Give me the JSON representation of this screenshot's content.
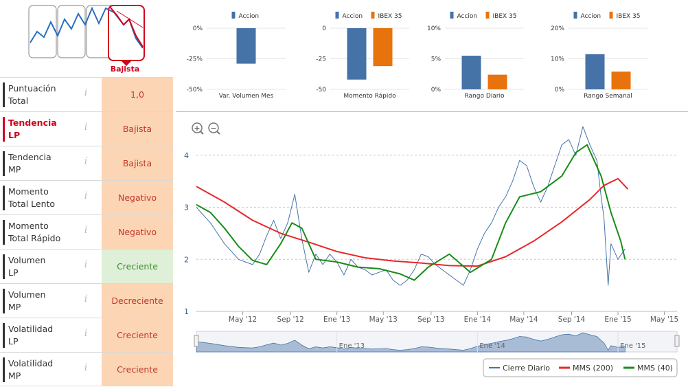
{
  "trend_widget": {
    "label": "Bajista",
    "selected_index": 3
  },
  "metrics": [
    {
      "label_line1": "Puntuación",
      "label_line2": "Total",
      "value": "1,0",
      "status": "negative",
      "highlight": false
    },
    {
      "label_line1": "Tendencia",
      "label_line2": "LP",
      "value": "Bajista",
      "status": "negative",
      "highlight": true
    },
    {
      "label_line1": "Tendencia",
      "label_line2": "MP",
      "value": "Bajista",
      "status": "negative",
      "highlight": false
    },
    {
      "label_line1": "Momento",
      "label_line2": "Total Lento",
      "value": "Negativo",
      "status": "negative",
      "highlight": false
    },
    {
      "label_line1": "Momento",
      "label_line2": "Total Rápido",
      "value": "Negativo",
      "status": "negative",
      "highlight": false
    },
    {
      "label_line1": "Volumen",
      "label_line2": "LP",
      "value": "Creciente",
      "status": "positive",
      "highlight": false
    },
    {
      "label_line1": "Volumen",
      "label_line2": "MP",
      "value": "Decreciente",
      "status": "negative",
      "highlight": false
    },
    {
      "label_line1": "Volatilidad",
      "label_line2": "LP",
      "value": "Creciente",
      "status": "negative",
      "highlight": false
    },
    {
      "label_line1": "Volatilidad",
      "label_line2": "MP",
      "value": "Creciente",
      "status": "negative",
      "highlight": false
    }
  ],
  "info_glyph": "i",
  "colors": {
    "accion": "#4572a7",
    "ibex": "#e8730c",
    "cierre": "#4572a7",
    "mms200": "#e8262a",
    "mms40": "#168d16",
    "negative_bg": "#fcd5b4",
    "positive_bg": "#dff0d8",
    "highlight": "#d0021b"
  },
  "chart_data": [
    {
      "type": "bar",
      "title": "Var. Volumen Mes",
      "series": [
        {
          "name": "Accion",
          "values": [
            -29
          ]
        }
      ],
      "categories": [
        "Var. Volumen Mes"
      ],
      "ylim": [
        -50,
        0
      ],
      "yticks": [
        0,
        -25,
        -50
      ],
      "tick_labels": [
        "0%",
        "-25%",
        "-50%"
      ]
    },
    {
      "type": "bar",
      "title": "Momento Rápido",
      "series": [
        {
          "name": "Accion",
          "values": [
            -42
          ]
        },
        {
          "name": "IBEX 35",
          "values": [
            -31
          ]
        }
      ],
      "categories": [
        "Momento Rápido"
      ],
      "ylim": [
        -50,
        0
      ],
      "yticks": [
        0,
        -25,
        -50
      ],
      "tick_labels": [
        "0",
        "-25",
        "-50"
      ]
    },
    {
      "type": "bar",
      "title": "Rango Diario",
      "series": [
        {
          "name": "Accion",
          "values": [
            5.5
          ]
        },
        {
          "name": "IBEX 35",
          "values": [
            2.4
          ]
        }
      ],
      "categories": [
        "Rango Diario"
      ],
      "ylim": [
        0,
        10
      ],
      "yticks": [
        10,
        5,
        0
      ],
      "tick_labels": [
        "10%",
        "5%",
        "0%"
      ]
    },
    {
      "type": "bar",
      "title": "Rango Semanal",
      "series": [
        {
          "name": "Accion",
          "values": [
            11.5
          ]
        },
        {
          "name": "IBEX 35",
          "values": [
            5.8
          ]
        }
      ],
      "categories": [
        "Rango Semanal"
      ],
      "ylim": [
        0,
        20
      ],
      "yticks": [
        20,
        10,
        0
      ],
      "tick_labels": [
        "20%",
        "10%",
        "0%"
      ]
    },
    {
      "type": "line",
      "title": "",
      "ylim": [
        1,
        4.5
      ],
      "yticks": [
        1,
        2,
        3,
        4
      ],
      "tick_labels": [
        "1",
        "2",
        "3",
        "4"
      ],
      "xlim": [
        2012.0,
        2015.42
      ],
      "x_ticks": [
        2012.33,
        2012.67,
        2013.0,
        2013.33,
        2013.67,
        2014.0,
        2014.33,
        2014.67,
        2015.0,
        2015.33
      ],
      "x_tick_labels": [
        "May '12",
        "Sep '12",
        "Ene '13",
        "May '13",
        "Sep '13",
        "Ene '14",
        "May '14",
        "Sep '14",
        "Ene '15",
        "May '15"
      ],
      "navigator_labels": [
        "Ene '13",
        "Ene '14",
        "Ene '15"
      ],
      "series": [
        {
          "name": "Cierre Diario",
          "x": [
            2012.0,
            2012.05,
            2012.1,
            2012.15,
            2012.2,
            2012.25,
            2012.3,
            2012.35,
            2012.4,
            2012.45,
            2012.5,
            2012.55,
            2012.6,
            2012.65,
            2012.7,
            2012.75,
            2012.8,
            2012.85,
            2012.9,
            2012.95,
            2013.0,
            2013.05,
            2013.1,
            2013.15,
            2013.2,
            2013.25,
            2013.3,
            2013.35,
            2013.4,
            2013.45,
            2013.5,
            2013.55,
            2013.6,
            2013.65,
            2013.7,
            2013.75,
            2013.8,
            2013.85,
            2013.9,
            2013.95,
            2014.0,
            2014.05,
            2014.1,
            2014.15,
            2014.2,
            2014.25,
            2014.3,
            2014.35,
            2014.4,
            2014.45,
            2014.5,
            2014.55,
            2014.6,
            2014.65,
            2014.7,
            2014.75,
            2014.8,
            2014.85,
            2014.88,
            2014.9,
            2014.93,
            2014.95,
            2015.0,
            2015.05
          ],
          "values": [
            3.0,
            2.85,
            2.7,
            2.5,
            2.3,
            2.15,
            2.0,
            1.95,
            1.9,
            2.1,
            2.45,
            2.75,
            2.4,
            2.7,
            3.25,
            2.4,
            1.75,
            2.1,
            1.9,
            2.1,
            1.95,
            1.7,
            2.0,
            1.85,
            1.8,
            1.7,
            1.75,
            1.8,
            1.6,
            1.5,
            1.6,
            1.8,
            2.1,
            2.05,
            1.9,
            1.8,
            1.7,
            1.6,
            1.5,
            1.8,
            2.2,
            2.5,
            2.7,
            3.0,
            3.2,
            3.5,
            3.9,
            3.8,
            3.4,
            3.1,
            3.4,
            3.8,
            4.2,
            4.3,
            4.0,
            4.55,
            4.2,
            3.9,
            3.2,
            2.8,
            1.5,
            2.3,
            2.0,
            2.2
          ]
        },
        {
          "name": "MMS (200)",
          "x": [
            2012.0,
            2012.2,
            2012.4,
            2012.6,
            2012.8,
            2013.0,
            2013.2,
            2013.4,
            2013.6,
            2013.8,
            2014.0,
            2014.2,
            2014.4,
            2014.6,
            2014.8,
            2014.9,
            2015.0,
            2015.07
          ],
          "values": [
            3.4,
            3.1,
            2.75,
            2.5,
            2.33,
            2.15,
            2.03,
            1.97,
            1.93,
            1.88,
            1.87,
            2.05,
            2.35,
            2.72,
            3.15,
            3.42,
            3.55,
            3.35
          ]
        },
        {
          "name": "MMS (40)",
          "x": [
            2012.0,
            2012.1,
            2012.2,
            2012.3,
            2012.4,
            2012.5,
            2012.6,
            2012.68,
            2012.75,
            2012.85,
            2013.0,
            2013.15,
            2013.3,
            2013.45,
            2013.55,
            2013.65,
            2013.8,
            2013.95,
            2014.1,
            2014.2,
            2014.3,
            2014.45,
            2014.6,
            2014.7,
            2014.78,
            2014.88,
            2014.95,
            2015.02,
            2015.05
          ],
          "values": [
            3.05,
            2.9,
            2.6,
            2.25,
            1.98,
            1.9,
            2.3,
            2.7,
            2.6,
            2.0,
            1.95,
            1.85,
            1.82,
            1.72,
            1.6,
            1.85,
            2.1,
            1.75,
            2.0,
            2.7,
            3.2,
            3.3,
            3.6,
            4.05,
            4.2,
            3.6,
            2.9,
            2.35,
            2.0
          ]
        }
      ],
      "zoom_in_label": "+",
      "zoom_out_label": "−"
    }
  ],
  "legends": {
    "accion": "Accion",
    "ibex": "IBEX 35",
    "cierre": "Cierre Diario",
    "mms200": "MMS (200)",
    "mms40": "MMS (40)"
  }
}
